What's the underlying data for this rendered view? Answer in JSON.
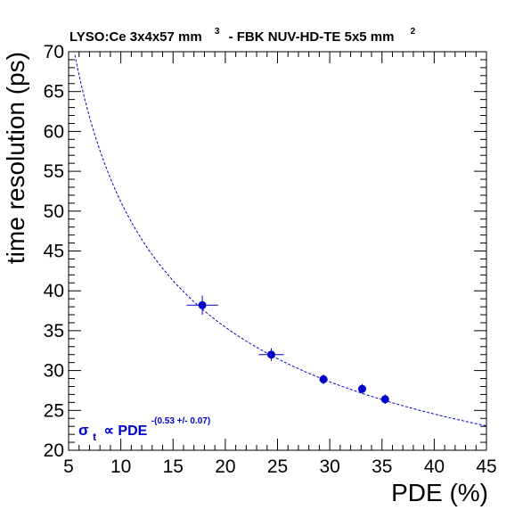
{
  "chart_data": {
    "type": "scatter",
    "title": {
      "part1": "LYSO:Ce 3x4x57 mm",
      "sup1": "3",
      "part2": "- FBK NUV-HD-TE 5x5 mm",
      "sup2": "2"
    },
    "xlabel": "PDE (%)",
    "ylabel": "time resolution (ps)",
    "xlim": [
      5,
      45
    ],
    "ylim": [
      20,
      70
    ],
    "xticks": [
      5,
      10,
      15,
      20,
      25,
      30,
      35,
      40,
      45
    ],
    "yticks": [
      20,
      25,
      30,
      35,
      40,
      45,
      50,
      55,
      60,
      65,
      70
    ],
    "grid": false,
    "series": [
      {
        "points": [
          {
            "x": 17.8,
            "y": 38.2,
            "xerr": 1.5,
            "yerr": 1.2
          },
          {
            "x": 24.4,
            "y": 32.0,
            "xerr": 1.2,
            "yerr": 0.8
          },
          {
            "x": 29.4,
            "y": 28.9,
            "xerr": 0.4,
            "yerr": 0.6
          },
          {
            "x": 33.1,
            "y": 27.7,
            "xerr": 0.4,
            "yerr": 0.6
          },
          {
            "x": 35.3,
            "y": 26.4,
            "xerr": 0.3,
            "yerr": 0.6
          }
        ],
        "color": "#0000cc"
      }
    ],
    "fit": {
      "exponent": -0.53,
      "x_ref": 29.4,
      "y_ref": 28.9,
      "color": "#0000cc"
    },
    "annotation": {
      "symbol": "σ",
      "subscript": "t",
      "relation": "∝ PDE",
      "superscript": "-(0.53 +/- 0.07)"
    }
  }
}
